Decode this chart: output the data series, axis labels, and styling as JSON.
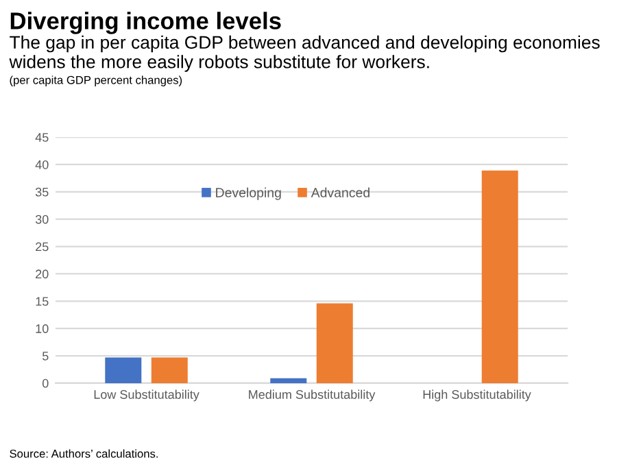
{
  "chart_data": {
    "type": "bar",
    "title": "Diverging income levels",
    "subtitle": "The gap in per capita GDP between advanced and developing economies widens the more easily robots substitute for workers.",
    "ylabel": "(per capita GDP percent changes)",
    "categories": [
      "Low Substitutability",
      "Medium Substitutability",
      "High Substitutability"
    ],
    "series": [
      {
        "name": "Developing",
        "color": "#4472c4",
        "values": [
          4.7,
          0.9,
          0
        ]
      },
      {
        "name": "Advanced",
        "color": "#ed7d31",
        "values": [
          4.7,
          14.6,
          38.9
        ]
      }
    ],
    "ylim": [
      0,
      45
    ],
    "yticks": [
      0,
      5,
      10,
      15,
      20,
      25,
      30,
      35,
      40,
      45
    ],
    "grid": "y",
    "legend": "top",
    "annotations": [
      "Source: Authors’ calculations."
    ]
  }
}
